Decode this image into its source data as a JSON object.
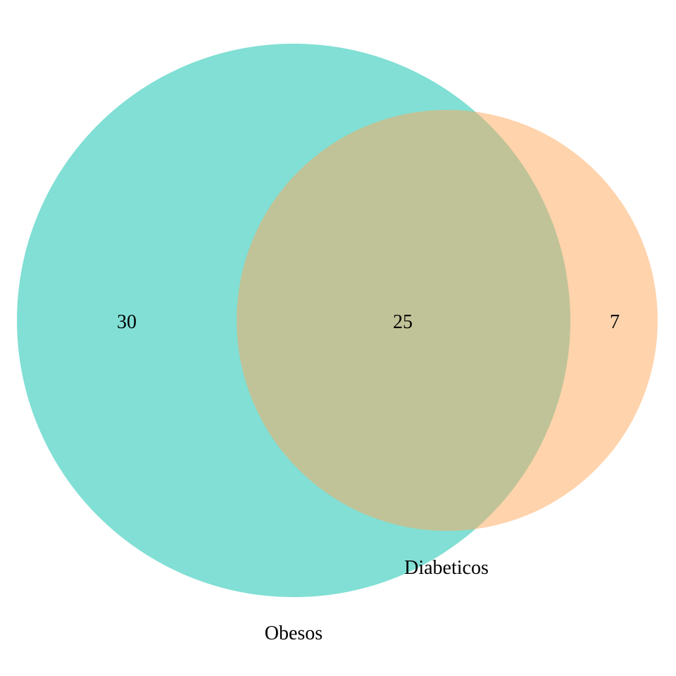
{
  "venn": {
    "sets": [
      {
        "name": "Obesos",
        "color": "#40CFC0"
      },
      {
        "name": "Diabeticos",
        "color": "#FFA85A"
      }
    ],
    "regions": {
      "only_first": "30",
      "intersection": "25",
      "only_second": "7"
    }
  }
}
